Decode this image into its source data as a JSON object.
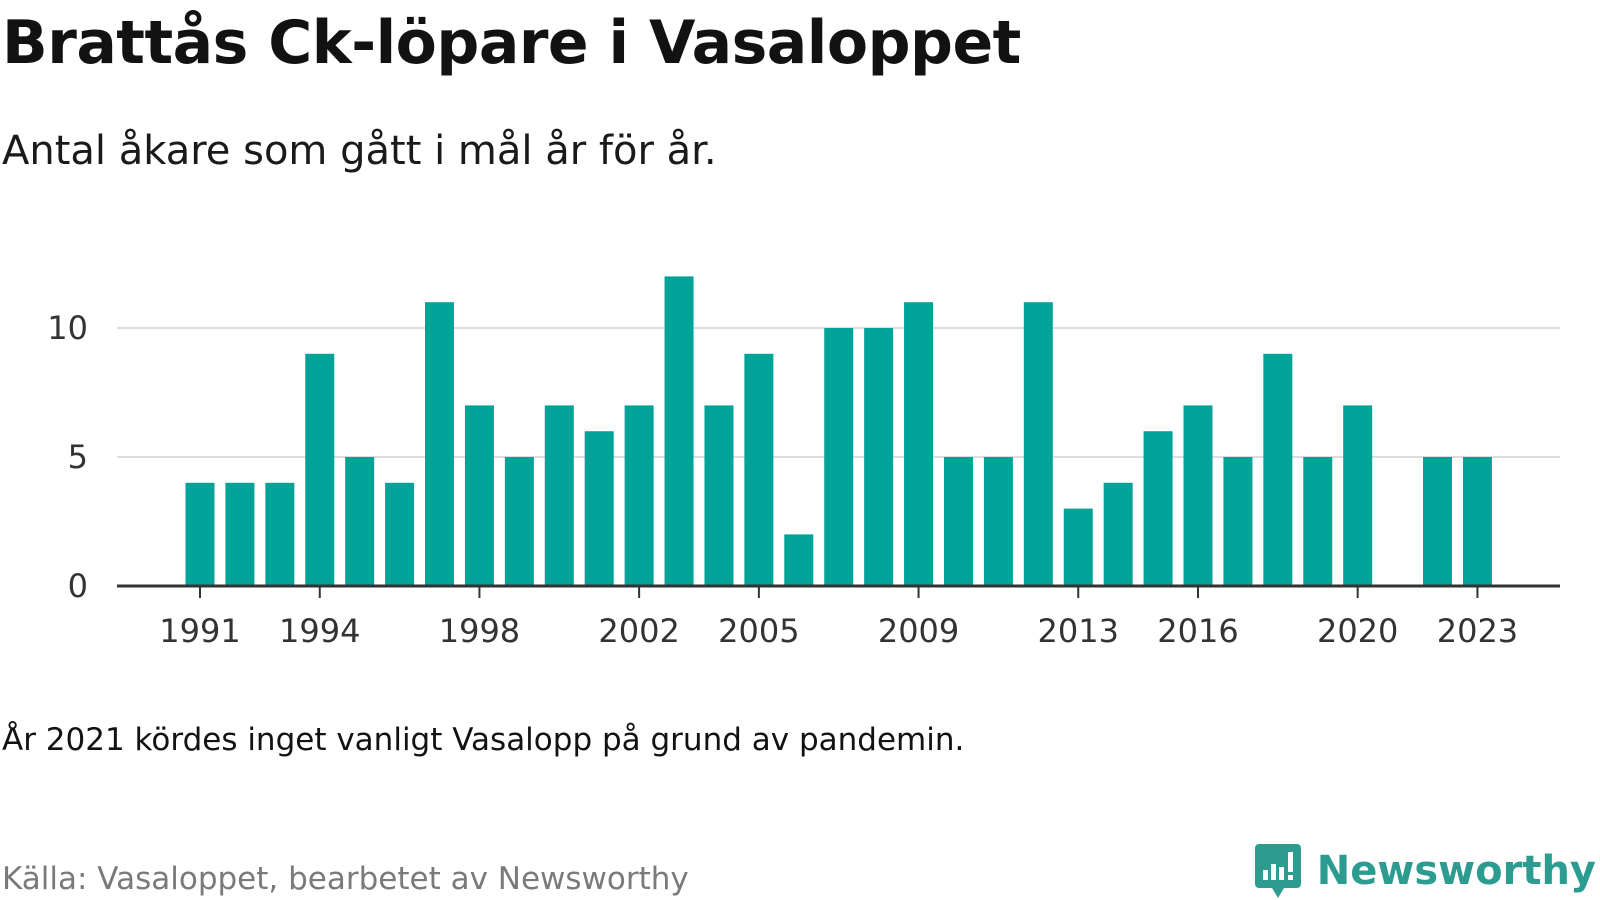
{
  "title": "Brattås Ck-löpare i Vasaloppet",
  "subtitle": "Antal åkare som gått i mål år för år.",
  "note": "År 2021 kördes inget vanligt Vasalopp på grund av pandemin.",
  "source": "Källa: Vasaloppet, bearbetet av Newsworthy",
  "logo_text": "Newsworthy",
  "colors": {
    "bar": "#00a398",
    "grid": "#dddddd",
    "axis": "#333333",
    "brand": "#2c9c91"
  },
  "chart_data": {
    "type": "bar",
    "title": "Brattås Ck-löpare i Vasaloppet",
    "subtitle": "Antal åkare som gått i mål år för år.",
    "xlabel": "",
    "ylabel": "",
    "categories": [
      1991,
      1992,
      1993,
      1994,
      1995,
      1996,
      1997,
      1998,
      1999,
      2000,
      2001,
      2002,
      2003,
      2004,
      2005,
      2006,
      2007,
      2008,
      2009,
      2010,
      2011,
      2012,
      2013,
      2014,
      2015,
      2016,
      2017,
      2018,
      2019,
      2020,
      2021,
      2022,
      2023
    ],
    "values": [
      4,
      4,
      4,
      9,
      5,
      4,
      11,
      7,
      5,
      7,
      6,
      7,
      12,
      7,
      9,
      2,
      10,
      10,
      11,
      5,
      5,
      11,
      3,
      4,
      6,
      7,
      5,
      9,
      5,
      7,
      null,
      5,
      5
    ],
    "xticks": [
      1991,
      1994,
      1998,
      2002,
      2005,
      2009,
      2013,
      2016,
      2020,
      2023
    ],
    "yticks": [
      0,
      5,
      10
    ],
    "ylim": [
      0,
      12
    ],
    "grid": true,
    "legend": "none"
  }
}
